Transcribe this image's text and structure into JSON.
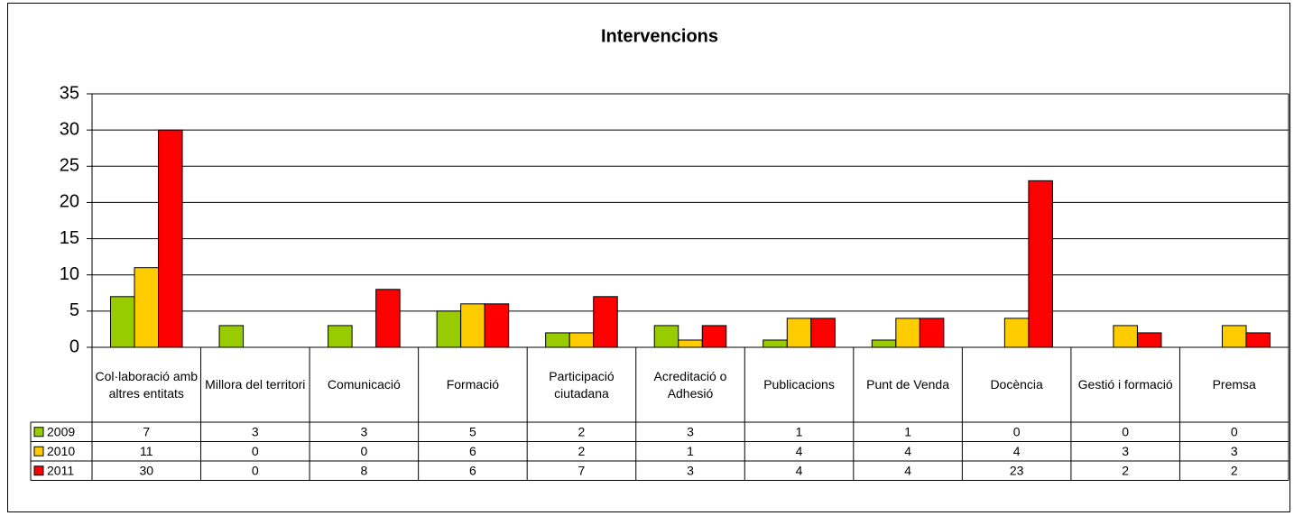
{
  "chart_data": {
    "type": "bar",
    "title": "Intervencions",
    "categories": [
      "Col·laboració amb altres entitats",
      "Millora del territori",
      "Comunicació",
      "Formació",
      "Participació ciutadana",
      "Acreditació o Adhesió",
      "Publicacions",
      "Punt de Venda",
      "Docència",
      "Gestió i formació",
      "Premsa"
    ],
    "series": [
      {
        "name": "2009",
        "color": "#99cc00",
        "values": [
          7,
          3,
          3,
          5,
          2,
          3,
          1,
          1,
          0,
          0,
          0
        ]
      },
      {
        "name": "2010",
        "color": "#ffcc00",
        "values": [
          11,
          0,
          0,
          6,
          2,
          1,
          4,
          4,
          4,
          3,
          3
        ]
      },
      {
        "name": "2011",
        "color": "#ff0000",
        "values": [
          30,
          0,
          8,
          6,
          7,
          3,
          4,
          4,
          23,
          2,
          2
        ]
      }
    ],
    "ylim": [
      0,
      35
    ],
    "yticks": [
      0,
      5,
      10,
      15,
      20,
      25,
      30,
      35
    ],
    "grid": true,
    "data_table": true
  }
}
